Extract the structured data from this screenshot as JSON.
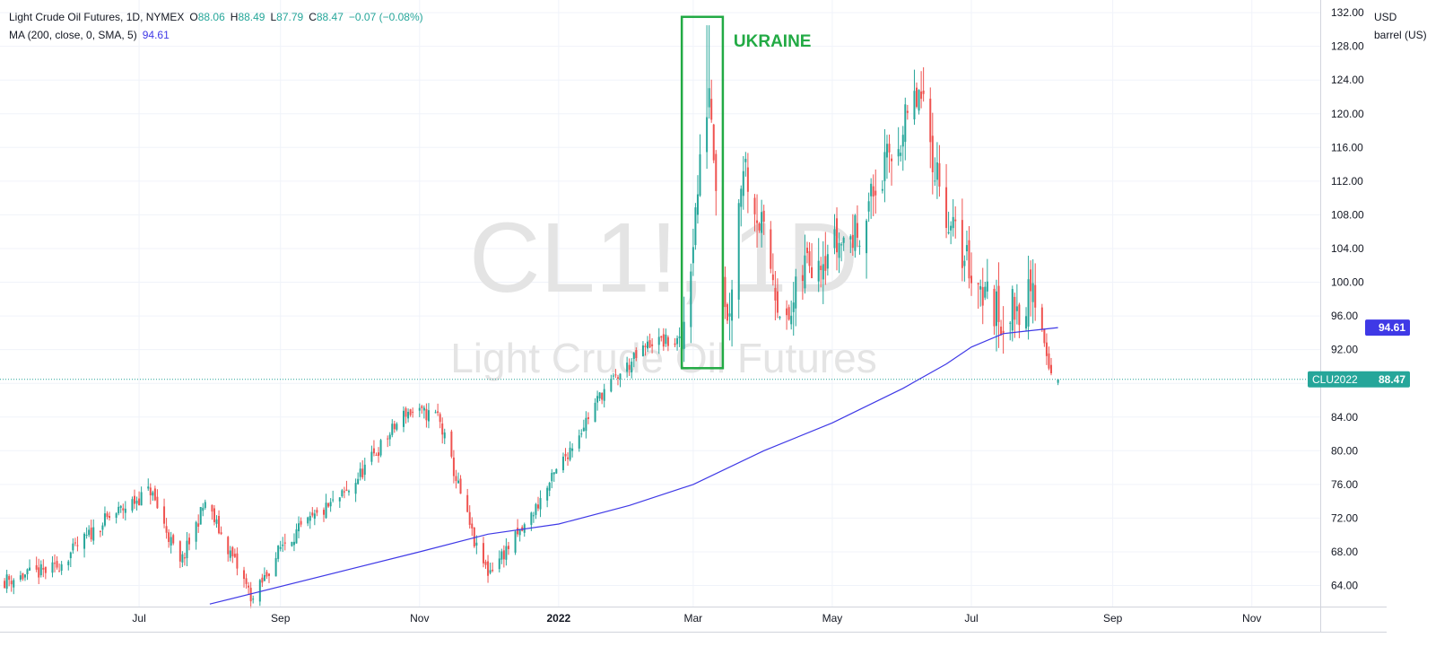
{
  "legend": {
    "title": "Light Crude Oil Futures, 1D, NYMEX",
    "o_label": "O",
    "o_value": "88.06",
    "h_label": "H",
    "h_value": "88.49",
    "l_label": "L",
    "l_value": "87.79",
    "c_label": "C",
    "c_value": "88.47",
    "change": "−0.07 (−0.08%)",
    "ma_label": "MA (200, close, 0, SMA, 5)",
    "ma_value": "94.61"
  },
  "axis_unit": {
    "line1": "USD",
    "line2": "barrel (US)"
  },
  "watermark": {
    "symbol": "CL1!, 1D",
    "name": "Light Crude Oil Futures"
  },
  "annotation": {
    "text": "UKRAINE",
    "color": "#22aa44",
    "x_start": "2022-02-24",
    "x_end": "2022-03-14",
    "y_top": 131.5,
    "y_bottom": 89.8
  },
  "price_label": {
    "symbol": "CLU2022",
    "value": "88.47",
    "color": "#26a69a"
  },
  "ma_label": {
    "value": "94.61",
    "color": "#3f39e6"
  },
  "colors": {
    "up": "#26a69a",
    "down": "#ef5350",
    "ma": "#3f39e6",
    "grid": "#f0f3fa"
  },
  "chart_data": {
    "type": "candlestick",
    "title": "Light Crude Oil Futures, 1D, NYMEX",
    "ylim": [
      61.5,
      133.5
    ],
    "y_ticks": [
      "64.00",
      "68.00",
      "72.00",
      "76.00",
      "80.00",
      "84.00",
      "88.00",
      "92.00",
      "96.00",
      "100.00",
      "104.00",
      "108.00",
      "112.00",
      "116.00",
      "120.00",
      "124.00",
      "128.00",
      "132.00"
    ],
    "x_range": [
      "2021-05-01",
      "2022-12-01"
    ],
    "x_ticks": [
      {
        "date": "2021-07-01",
        "label": "Jul",
        "bold": false
      },
      {
        "date": "2021-09-01",
        "label": "Sep",
        "bold": false
      },
      {
        "date": "2021-11-01",
        "label": "Nov",
        "bold": false
      },
      {
        "date": "2022-01-01",
        "label": "2022",
        "bold": true
      },
      {
        "date": "2022-03-01",
        "label": "Mar",
        "bold": false
      },
      {
        "date": "2022-05-01",
        "label": "May",
        "bold": false
      },
      {
        "date": "2022-07-01",
        "label": "Jul",
        "bold": false
      },
      {
        "date": "2022-09-01",
        "label": "Sep",
        "bold": false
      },
      {
        "date": "2022-11-01",
        "label": "Nov",
        "bold": false
      }
    ],
    "grid": true,
    "last_close": 88.47,
    "series_anchors": [
      [
        "2021-05-03",
        64.6
      ],
      [
        "2021-05-25",
        66.0
      ],
      [
        "2021-06-15",
        71.5
      ],
      [
        "2021-07-06",
        75.3
      ],
      [
        "2021-07-19",
        66.4
      ],
      [
        "2021-07-30",
        73.9
      ],
      [
        "2021-08-20",
        62.3
      ],
      [
        "2021-09-02",
        69.0
      ],
      [
        "2021-09-30",
        75.0
      ],
      [
        "2021-10-26",
        84.6
      ],
      [
        "2021-11-09",
        84.2
      ],
      [
        "2021-11-26",
        68.2
      ],
      [
        "2021-12-01",
        65.6
      ],
      [
        "2021-12-17",
        70.9
      ],
      [
        "2022-01-20",
        86.9
      ],
      [
        "2022-02-11",
        93.0
      ],
      [
        "2022-02-24",
        92.8
      ],
      [
        "2022-03-08",
        123.7
      ],
      [
        "2022-03-16",
        95.0
      ],
      [
        "2022-03-23",
        114.9
      ],
      [
        "2022-04-11",
        94.3
      ],
      [
        "2022-04-20",
        102.8
      ],
      [
        "2022-05-11",
        105.7
      ],
      [
        "2022-06-08",
        122.1
      ],
      [
        "2022-06-22",
        106.2
      ],
      [
        "2022-07-05",
        99.5
      ],
      [
        "2022-07-14",
        95.8
      ],
      [
        "2022-07-29",
        98.6
      ],
      [
        "2022-08-05",
        89.0
      ],
      [
        "2022-08-08",
        88.47
      ]
    ],
    "ma_200": [
      [
        "2021-08-01",
        61.8
      ],
      [
        "2021-11-01",
        68.0
      ],
      [
        "2021-12-01",
        70.1
      ],
      [
        "2022-01-01",
        71.3
      ],
      [
        "2022-02-01",
        73.5
      ],
      [
        "2022-03-01",
        76.0
      ],
      [
        "2022-04-01",
        80.0
      ],
      [
        "2022-05-01",
        83.3
      ],
      [
        "2022-06-01",
        87.4
      ],
      [
        "2022-06-20",
        90.3
      ],
      [
        "2022-07-01",
        92.3
      ],
      [
        "2022-07-15",
        93.9
      ],
      [
        "2022-08-08",
        94.61
      ]
    ]
  }
}
